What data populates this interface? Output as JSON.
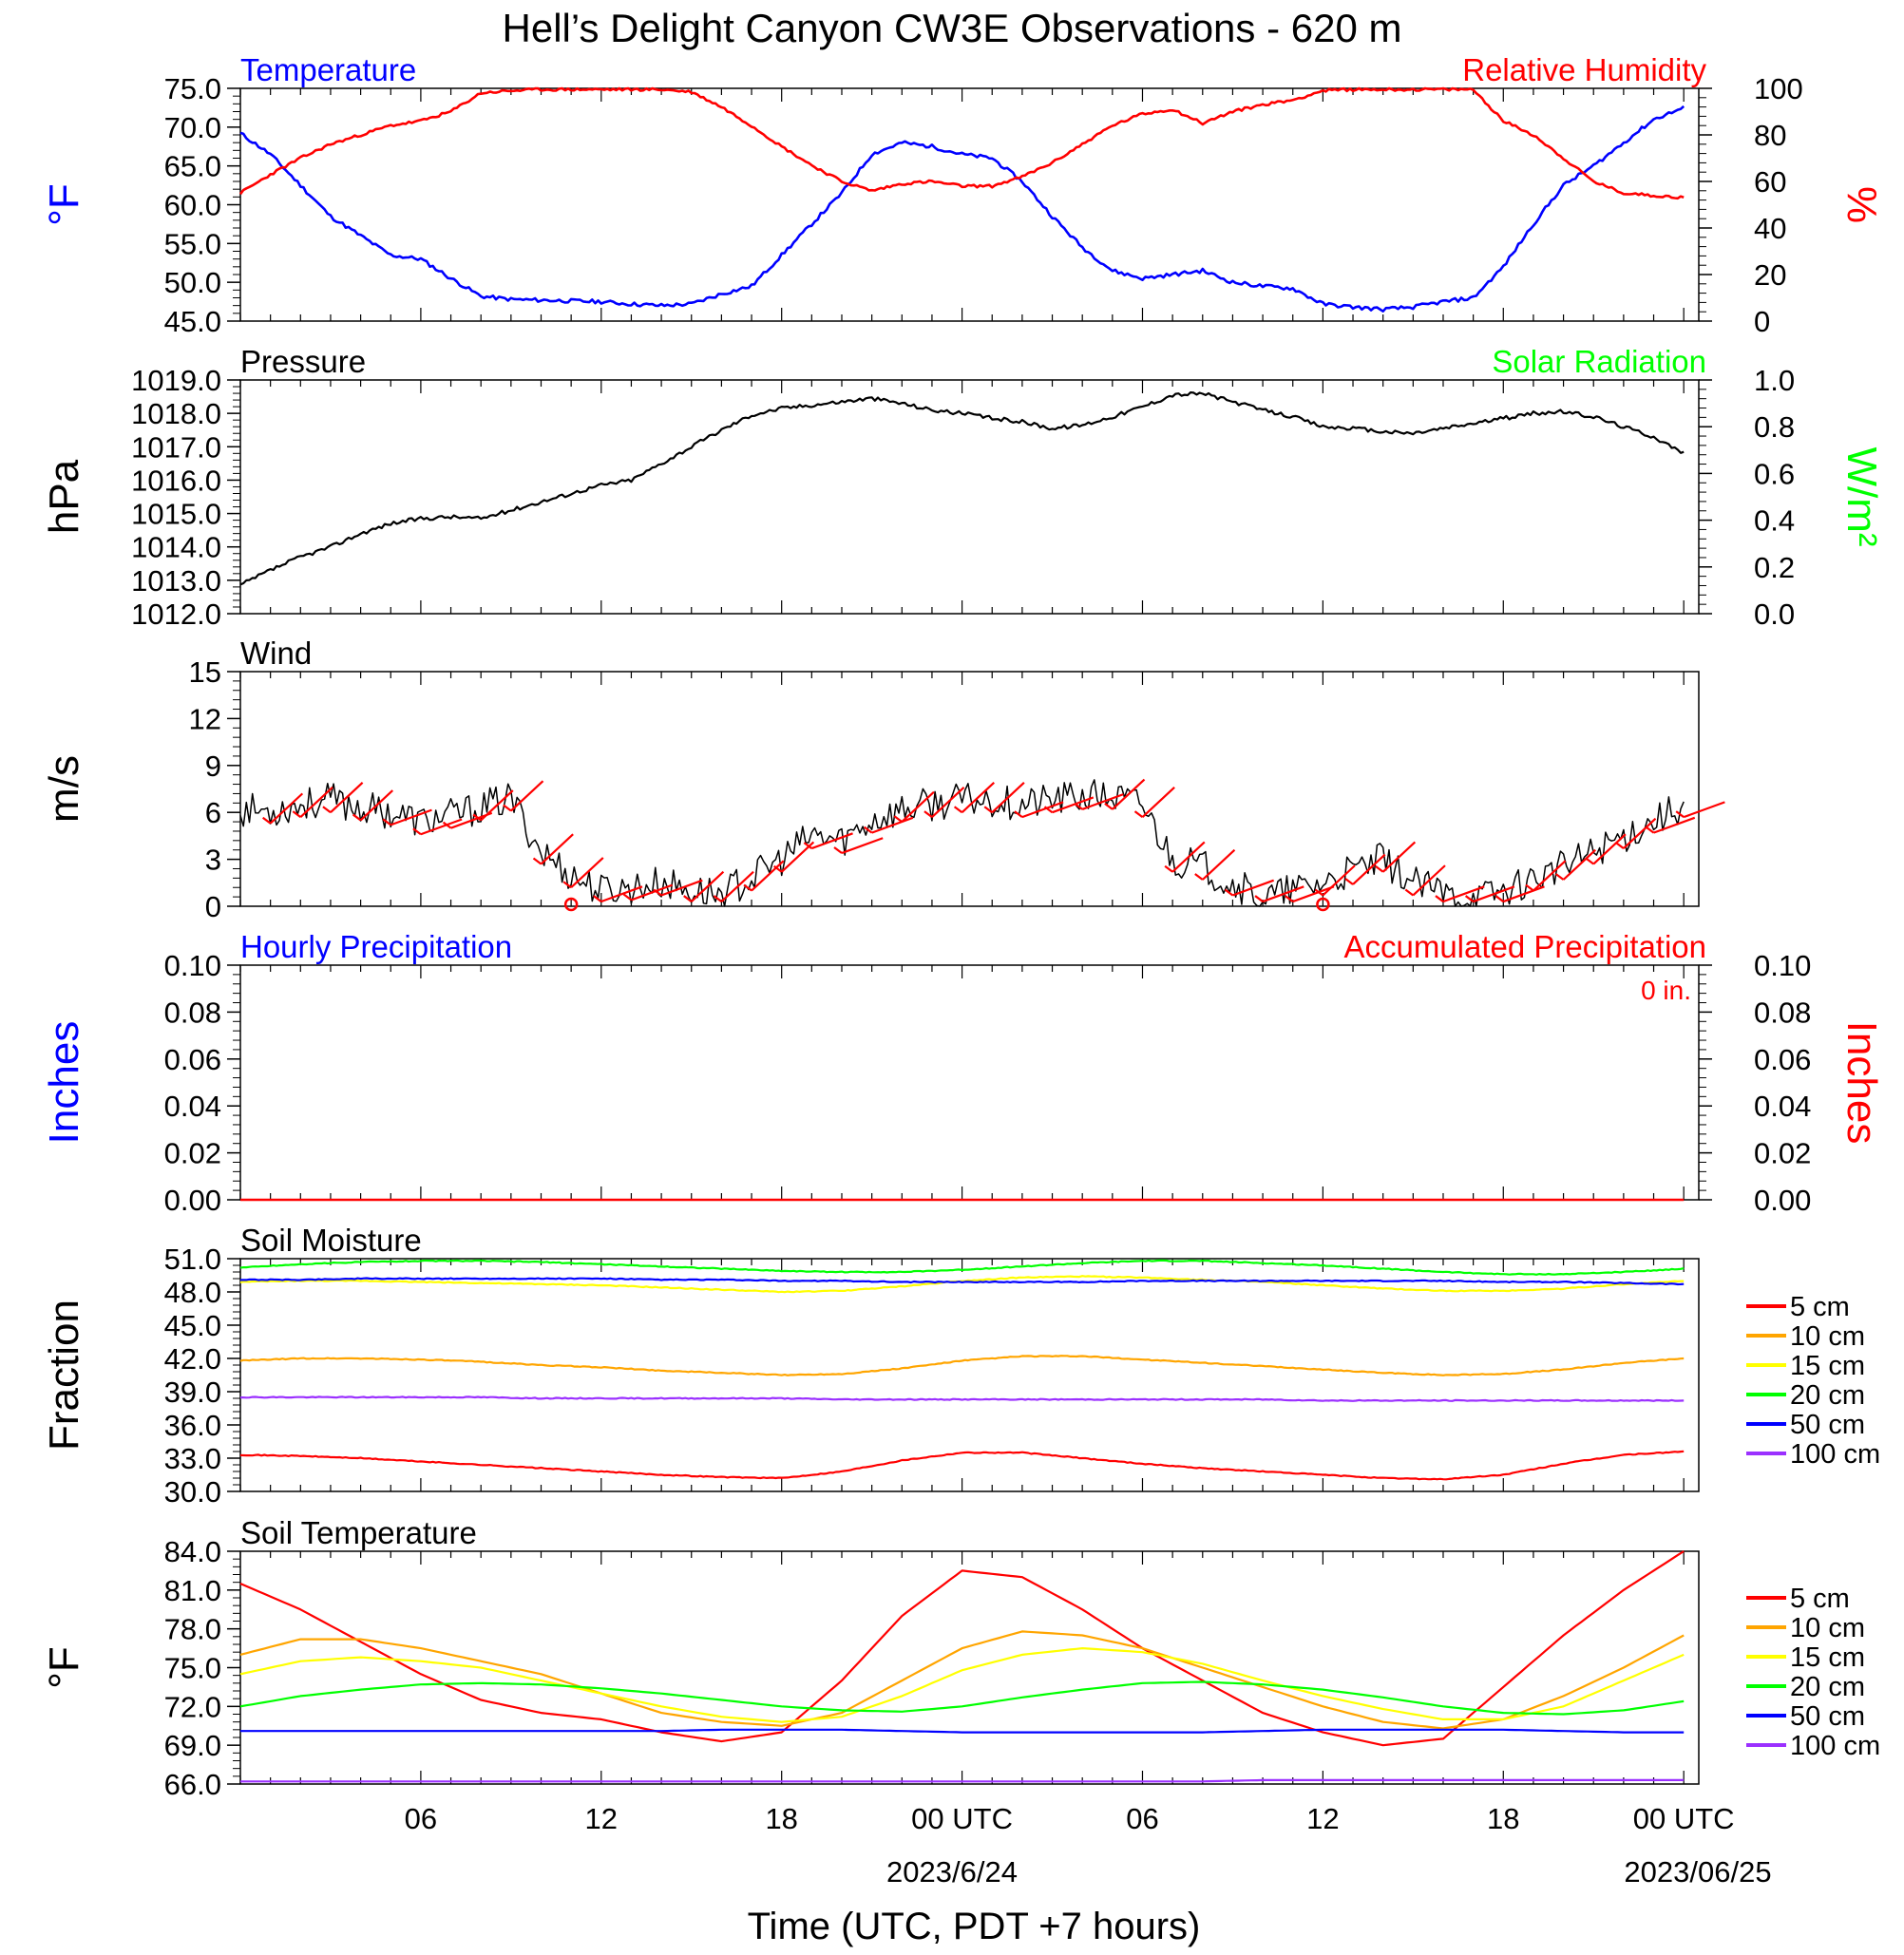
{
  "title": "Hell’s Delight Canyon CW3E Observations - 620 m",
  "xaxis": {
    "label": "Time (UTC, PDT +7 hours)",
    "ticks": [
      "06",
      "12",
      "18",
      "00 UTC",
      "06",
      "12",
      "18",
      "00 UTC"
    ],
    "dates": [
      "2023/6/24",
      "2023/06/25"
    ]
  },
  "colors": {
    "temperature": "#0000ff",
    "humidity": "#ff0000",
    "pressure": "#000000",
    "solar": "#00ff00",
    "wind": "#000000",
    "barbs": "#ff0000",
    "precip": "#ff0000",
    "d5": "#ff0000",
    "d10": "#ffa500",
    "d15": "#ffff00",
    "d20": "#00ff00",
    "d50": "#0000ff",
    "d100": "#9b30ff"
  },
  "chart_data": [
    {
      "type": "line",
      "panel": "temperature_humidity",
      "title_left": "Temperature",
      "title_right": "Relative Humidity",
      "ylabel_left": "°F",
      "ylabel_right": "%",
      "ylim_left": [
        45,
        75
      ],
      "ylim_right": [
        0,
        100
      ],
      "yticks_left": [
        "75.0",
        "70.0",
        "65.0",
        "60.0",
        "55.0",
        "50.0",
        "45.0"
      ],
      "yticks_right": [
        "100",
        "80",
        "60",
        "40",
        "20",
        "0"
      ],
      "x_hours": [
        0,
        1,
        2,
        3,
        4,
        5,
        6,
        7,
        8,
        9,
        10,
        11,
        12,
        13,
        14,
        15,
        16,
        17,
        18,
        19,
        20,
        21,
        22,
        23,
        24,
        25,
        26,
        27,
        28,
        29,
        30,
        31,
        32,
        33,
        34,
        35,
        36,
        37,
        38,
        39,
        40,
        41,
        42,
        43,
        44,
        45,
        46,
        47,
        48
      ],
      "series": [
        {
          "name": "Temperature",
          "axis": "left",
          "values": [
            69.2,
            66.5,
            62.5,
            58.5,
            56.0,
            53.5,
            53.0,
            50.5,
            48.2,
            47.8,
            47.7,
            47.6,
            47.5,
            47.2,
            47.0,
            47.2,
            48.5,
            49.5,
            53.5,
            57.5,
            61.5,
            66.5,
            68.0,
            67.5,
            66.5,
            66.0,
            63.0,
            58.5,
            54.5,
            51.5,
            50.5,
            51.0,
            51.5,
            50.0,
            49.5,
            49.2,
            47.2,
            46.8,
            46.5,
            46.8,
            47.5,
            48.0,
            52.0,
            57.5,
            62.5,
            65.0,
            68.0,
            71.0,
            72.5
          ]
        },
        {
          "name": "Relative Humidity",
          "axis": "right",
          "values": [
            55,
            63,
            70,
            76,
            80,
            84,
            86,
            90,
            98,
            99,
            99.5,
            99.5,
            99.5,
            99.5,
            99.5,
            98.5,
            92,
            84,
            75,
            67,
            60,
            56,
            59,
            60,
            58,
            58,
            62,
            68,
            76,
            84,
            89,
            91,
            85,
            90,
            93,
            95,
            99,
            99.5,
            99.5,
            99.5,
            99.5,
            99.5,
            86,
            80,
            70,
            60,
            55,
            54,
            53
          ]
        }
      ]
    },
    {
      "type": "line",
      "panel": "pressure_solar",
      "title_left": "Pressure",
      "title_right": "Solar Radiation",
      "ylabel_left": "hPa",
      "ylabel_right": "W/m²",
      "ylim_left": [
        1012,
        1019
      ],
      "ylim_right": [
        0,
        1
      ],
      "yticks_left": [
        "1019.0",
        "1018.0",
        "1017.0",
        "1016.0",
        "1015.0",
        "1014.0",
        "1013.0",
        "1012.0"
      ],
      "yticks_right": [
        "1.0",
        "0.8",
        "0.6",
        "0.4",
        "0.2",
        "0.0"
      ],
      "x_hours": [
        0,
        1,
        2,
        3,
        4,
        5,
        6,
        7,
        8,
        9,
        10,
        11,
        12,
        13,
        14,
        15,
        16,
        17,
        18,
        19,
        20,
        21,
        22,
        23,
        24,
        25,
        26,
        27,
        28,
        29,
        30,
        31,
        32,
        33,
        34,
        35,
        36,
        37,
        38,
        39,
        40,
        41,
        42,
        43,
        44,
        45,
        46,
        47,
        48
      ],
      "series": [
        {
          "name": "Pressure",
          "axis": "left",
          "values": [
            1012.85,
            1013.3,
            1013.7,
            1014.0,
            1014.4,
            1014.7,
            1014.85,
            1014.9,
            1014.85,
            1015.1,
            1015.35,
            1015.6,
            1015.85,
            1016.0,
            1016.5,
            1017.0,
            1017.5,
            1017.95,
            1018.15,
            1018.25,
            1018.35,
            1018.45,
            1018.3,
            1018.1,
            1018.0,
            1017.85,
            1017.75,
            1017.55,
            1017.65,
            1017.9,
            1018.2,
            1018.55,
            1018.6,
            1018.35,
            1018.1,
            1017.9,
            1017.6,
            1017.55,
            1017.45,
            1017.4,
            1017.55,
            1017.7,
            1017.85,
            1018.0,
            1018.05,
            1017.9,
            1017.6,
            1017.3,
            1016.8
          ]
        }
      ]
    },
    {
      "type": "line",
      "panel": "wind",
      "title_left": "Wind",
      "ylabel_left": "m/s",
      "ylim_left": [
        0,
        15
      ],
      "yticks_left": [
        "15",
        "12",
        "9",
        "6",
        "3",
        "0"
      ],
      "x_hours": [
        0,
        1,
        2,
        3,
        4,
        5,
        6,
        7,
        8,
        9,
        10,
        11,
        12,
        13,
        14,
        15,
        16,
        17,
        18,
        19,
        20,
        21,
        22,
        23,
        24,
        25,
        26,
        27,
        28,
        29,
        30,
        31,
        32,
        33,
        34,
        35,
        36,
        37,
        38,
        39,
        40,
        41,
        42,
        43,
        44,
        45,
        46,
        47,
        48
      ],
      "series": [
        {
          "name": "Wind speed",
          "axis": "left",
          "values": [
            6.2,
            6.1,
            6.5,
            6.8,
            6.3,
            6.0,
            5.4,
            5.8,
            6.3,
            6.9,
            3.5,
            2.0,
            1.0,
            1.2,
            1.5,
            1.0,
            0.8,
            1.8,
            3.0,
            4.5,
            4.2,
            5.5,
            6.2,
            6.5,
            6.8,
            6.8,
            6.5,
            6.8,
            7.0,
            7.0,
            6.5,
            3.0,
            2.5,
            1.5,
            0.5,
            1.0,
            1.5,
            2.2,
            3.0,
            1.5,
            0.8,
            0.5,
            1.0,
            1.8,
            2.5,
            3.5,
            4.5,
            5.5,
            6.5
          ]
        }
      ],
      "barbs_hours": [
        1,
        2,
        3,
        4,
        5,
        6,
        7,
        8,
        9,
        10,
        11,
        12,
        13,
        14,
        15,
        16,
        17,
        18,
        19,
        20,
        21,
        22,
        23,
        24,
        25,
        26,
        27,
        28,
        29,
        30,
        31,
        32,
        33,
        34,
        35,
        36,
        37,
        38,
        39,
        40,
        41,
        42,
        43,
        44,
        45,
        46,
        47,
        48
      ]
    },
    {
      "type": "line",
      "panel": "precipitation",
      "title_left": "Hourly Precipitation",
      "title_right": "Accumulated Precipitation",
      "annotation": "0 in.",
      "ylabel_left": "Inches",
      "ylabel_right": "Inches",
      "ylim_left": [
        0,
        0.1
      ],
      "ylim_right": [
        0,
        0.1
      ],
      "yticks_left": [
        "0.10",
        "0.08",
        "0.06",
        "0.04",
        "0.02",
        "0.00"
      ],
      "yticks_right": [
        "0.10",
        "0.08",
        "0.06",
        "0.04",
        "0.02",
        "0.00"
      ],
      "x_hours": [
        0,
        48
      ],
      "series": [
        {
          "name": "Accumulated Precipitation",
          "axis": "left",
          "values": [
            0,
            0
          ]
        }
      ]
    },
    {
      "type": "line",
      "panel": "soil_moisture",
      "title_left": "Soil Moisture",
      "ylabel_left": "Fraction",
      "ylim_left": [
        30,
        51
      ],
      "yticks_left": [
        "51.0",
        "48.0",
        "45.0",
        "42.0",
        "39.0",
        "36.0",
        "33.0",
        "30.0"
      ],
      "legend": [
        "5 cm",
        "10 cm",
        "15 cm",
        "20 cm",
        "50 cm",
        "100 cm"
      ],
      "x_hours": [
        0,
        2,
        4,
        6,
        8,
        10,
        12,
        14,
        16,
        18,
        20,
        22,
        24,
        26,
        28,
        30,
        32,
        34,
        36,
        38,
        40,
        42,
        44,
        46,
        48
      ],
      "series": [
        {
          "name": "5 cm",
          "values": [
            33.3,
            33.2,
            33.0,
            32.7,
            32.4,
            32.1,
            31.8,
            31.5,
            31.3,
            31.2,
            31.8,
            32.8,
            33.5,
            33.5,
            33.0,
            32.5,
            32.1,
            31.8,
            31.5,
            31.2,
            31.1,
            31.5,
            32.5,
            33.3,
            33.6
          ]
        },
        {
          "name": "10 cm",
          "values": [
            41.8,
            42.0,
            42.0,
            41.9,
            41.7,
            41.4,
            41.2,
            40.9,
            40.7,
            40.5,
            40.6,
            41.1,
            41.8,
            42.2,
            42.2,
            41.9,
            41.6,
            41.3,
            41.0,
            40.7,
            40.5,
            40.6,
            41.0,
            41.6,
            42.0
          ]
        },
        {
          "name": "15 cm",
          "values": [
            48.9,
            49.0,
            49.0,
            48.9,
            48.8,
            48.7,
            48.6,
            48.4,
            48.2,
            48.0,
            48.1,
            48.5,
            49.0,
            49.3,
            49.4,
            49.3,
            49.1,
            48.9,
            48.6,
            48.3,
            48.1,
            48.1,
            48.3,
            48.7,
            49.0
          ]
        },
        {
          "name": "20 cm",
          "values": [
            50.2,
            50.5,
            50.7,
            50.8,
            50.8,
            50.7,
            50.5,
            50.3,
            50.1,
            49.9,
            49.8,
            49.8,
            50.0,
            50.3,
            50.6,
            50.8,
            50.8,
            50.6,
            50.4,
            50.1,
            49.8,
            49.6,
            49.6,
            49.8,
            50.1
          ]
        },
        {
          "name": "50 cm",
          "values": [
            49.1,
            49.1,
            49.2,
            49.2,
            49.2,
            49.2,
            49.2,
            49.1,
            49.1,
            49.0,
            49.0,
            48.9,
            48.9,
            48.9,
            48.9,
            49.0,
            49.0,
            49.0,
            49.0,
            49.0,
            49.0,
            48.9,
            48.9,
            48.8,
            48.7
          ]
        },
        {
          "name": "100 cm",
          "values": [
            38.5,
            38.5,
            38.5,
            38.5,
            38.5,
            38.4,
            38.4,
            38.4,
            38.4,
            38.4,
            38.3,
            38.3,
            38.3,
            38.3,
            38.3,
            38.3,
            38.3,
            38.3,
            38.2,
            38.2,
            38.2,
            38.2,
            38.2,
            38.2,
            38.2
          ]
        }
      ]
    },
    {
      "type": "line",
      "panel": "soil_temperature",
      "title_left": "Soil Temperature",
      "ylabel_left": "°F",
      "ylim_left": [
        66,
        84
      ],
      "yticks_left": [
        "84.0",
        "81.0",
        "78.0",
        "75.0",
        "72.0",
        "69.0",
        "66.0"
      ],
      "legend": [
        "5 cm",
        "10 cm",
        "15 cm",
        "20 cm",
        "50 cm",
        "100 cm"
      ],
      "x_hours": [
        0,
        2,
        4,
        6,
        8,
        10,
        12,
        14,
        16,
        18,
        20,
        22,
        24,
        26,
        28,
        30,
        32,
        34,
        36,
        38,
        40,
        42,
        44,
        46,
        48
      ],
      "series": [
        {
          "name": "5 cm",
          "values": [
            81.5,
            79.5,
            77.0,
            74.5,
            72.5,
            71.5,
            71.0,
            70.0,
            69.3,
            70.0,
            74.0,
            79.0,
            82.5,
            82.0,
            79.5,
            76.5,
            74.0,
            71.5,
            70.0,
            69.0,
            69.5,
            73.5,
            77.5,
            81.0,
            84.0
          ]
        },
        {
          "name": "10 cm",
          "values": [
            76.0,
            77.2,
            77.2,
            76.5,
            75.5,
            74.5,
            73.0,
            71.5,
            70.8,
            70.5,
            71.5,
            74.0,
            76.5,
            77.8,
            77.5,
            76.5,
            75.0,
            73.5,
            72.0,
            70.8,
            70.3,
            71.0,
            72.8,
            75.0,
            77.5
          ]
        },
        {
          "name": "15 cm",
          "values": [
            74.5,
            75.5,
            75.8,
            75.5,
            75.0,
            74.0,
            73.0,
            72.0,
            71.2,
            70.8,
            71.2,
            72.8,
            74.8,
            76.0,
            76.5,
            76.2,
            75.3,
            74.0,
            72.8,
            71.8,
            71.0,
            71.0,
            72.0,
            74.0,
            76.0
          ]
        },
        {
          "name": "20 cm",
          "values": [
            72.0,
            72.8,
            73.3,
            73.7,
            73.8,
            73.7,
            73.4,
            73.0,
            72.5,
            72.0,
            71.7,
            71.6,
            72.0,
            72.7,
            73.3,
            73.8,
            73.9,
            73.7,
            73.3,
            72.7,
            72.0,
            71.5,
            71.4,
            71.7,
            72.4
          ]
        },
        {
          "name": "50 cm",
          "values": [
            70.1,
            70.1,
            70.1,
            70.1,
            70.1,
            70.1,
            70.1,
            70.1,
            70.2,
            70.2,
            70.2,
            70.1,
            70.0,
            70.0,
            70.0,
            70.0,
            70.0,
            70.1,
            70.2,
            70.2,
            70.2,
            70.2,
            70.1,
            70.0,
            70.0
          ]
        },
        {
          "name": "100 cm",
          "values": [
            66.2,
            66.2,
            66.2,
            66.2,
            66.2,
            66.2,
            66.2,
            66.2,
            66.2,
            66.2,
            66.2,
            66.2,
            66.2,
            66.2,
            66.2,
            66.2,
            66.2,
            66.3,
            66.3,
            66.3,
            66.3,
            66.3,
            66.3,
            66.3,
            66.3
          ]
        }
      ]
    }
  ]
}
